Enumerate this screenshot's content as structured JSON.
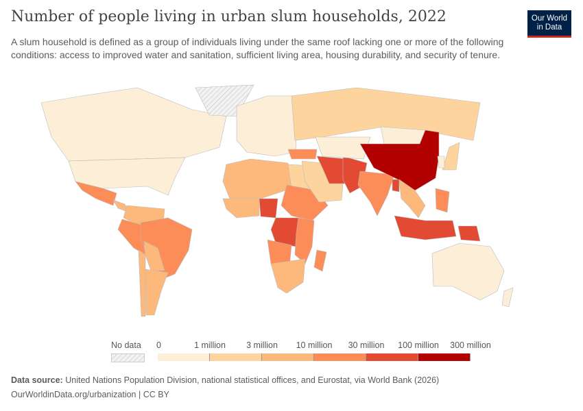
{
  "header": {
    "title": "Number of people living in urban slum households, 2022",
    "subtitle": "A slum household is defined as a group of individuals living under the same roof lacking one or more of the following conditions: access to improved water and sanitation, sufficient living area, housing durability, and security of tenure.",
    "logo_line1": "Our World",
    "logo_line2": "in Data"
  },
  "chart_data": {
    "type": "choropleth",
    "year": 2022,
    "legend": {
      "no_data_label": "No data",
      "no_data_color": "#e0e0e0",
      "ticks": [
        "0",
        "1 million",
        "3 million",
        "10 million",
        "30 million",
        "100 million",
        "300 million"
      ],
      "colors": [
        "#fdeed8",
        "#fdd49e",
        "#fdb97c",
        "#fc8d59",
        "#e34a33",
        "#b30000"
      ]
    },
    "regions": [
      {
        "id": "CAN",
        "bin": 0
      },
      {
        "id": "GRL",
        "bin": null
      },
      {
        "id": "USA",
        "bin": 0
      },
      {
        "id": "MEX",
        "bin": 3
      },
      {
        "id": "CAM",
        "bin": 2
      },
      {
        "id": "COL-VEN",
        "bin": 2
      },
      {
        "id": "PER",
        "bin": 3
      },
      {
        "id": "BRA",
        "bin": 3
      },
      {
        "id": "BOL-PRY",
        "bin": 2
      },
      {
        "id": "ARG",
        "bin": 2
      },
      {
        "id": "CHL",
        "bin": 2
      },
      {
        "id": "EUR",
        "bin": 0
      },
      {
        "id": "RUS",
        "bin": 1
      },
      {
        "id": "NAF",
        "bin": 2
      },
      {
        "id": "EGY",
        "bin": 1
      },
      {
        "id": "WAF",
        "bin": 2
      },
      {
        "id": "NGA",
        "bin": 4
      },
      {
        "id": "SDN-ETH",
        "bin": 3
      },
      {
        "id": "COD",
        "bin": 4
      },
      {
        "id": "AGO",
        "bin": 3
      },
      {
        "id": "EAF",
        "bin": 3
      },
      {
        "id": "SAF",
        "bin": 2
      },
      {
        "id": "MDG",
        "bin": 3
      },
      {
        "id": "TUR",
        "bin": 3
      },
      {
        "id": "MEA",
        "bin": 1
      },
      {
        "id": "IRN",
        "bin": 4
      },
      {
        "id": "AFG-PAK",
        "bin": 4
      },
      {
        "id": "CAS",
        "bin": 0
      },
      {
        "id": "IND",
        "bin": 3
      },
      {
        "id": "BGD",
        "bin": 4
      },
      {
        "id": "MNG",
        "bin": 0
      },
      {
        "id": "CHN",
        "bin": 5
      },
      {
        "id": "SEA",
        "bin": 2
      },
      {
        "id": "PHL",
        "bin": 3
      },
      {
        "id": "IDN",
        "bin": 4
      },
      {
        "id": "PNG",
        "bin": 4
      },
      {
        "id": "JPN",
        "bin": 1
      },
      {
        "id": "KOR",
        "bin": 0
      },
      {
        "id": "AUS",
        "bin": 0
      },
      {
        "id": "NZL",
        "bin": 0
      }
    ]
  },
  "footer": {
    "source_label": "Data source:",
    "source": "United Nations Population Division, national statistical offices, and Eurostat, via World Bank (2026)",
    "url": "OurWorldinData.org/urbanization | CC BY"
  }
}
